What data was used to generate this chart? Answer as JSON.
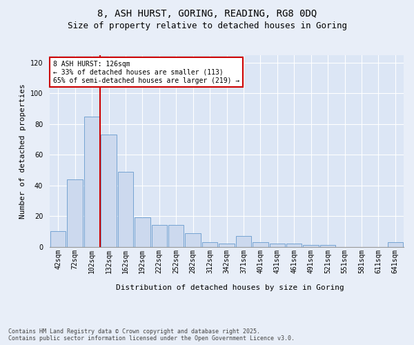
{
  "title_line1": "8, ASH HURST, GORING, READING, RG8 0DQ",
  "title_line2": "Size of property relative to detached houses in Goring",
  "xlabel": "Distribution of detached houses by size in Goring",
  "ylabel": "Number of detached properties",
  "bar_color": "#ccd9ee",
  "bar_edge_color": "#6699cc",
  "background_color": "#dce6f5",
  "fig_background_color": "#e8eef8",
  "grid_color": "#ffffff",
  "vline_color": "#cc0000",
  "annotation_text": "8 ASH HURST: 126sqm\n← 33% of detached houses are smaller (113)\n65% of semi-detached houses are larger (219) →",
  "annotation_box_color": "#cc0000",
  "categories": [
    "42sqm",
    "72sqm",
    "102sqm",
    "132sqm",
    "162sqm",
    "192sqm",
    "222sqm",
    "252sqm",
    "282sqm",
    "312sqm",
    "342sqm",
    "371sqm",
    "401sqm",
    "431sqm",
    "461sqm",
    "491sqm",
    "521sqm",
    "551sqm",
    "581sqm",
    "611sqm",
    "641sqm"
  ],
  "values": [
    10,
    44,
    85,
    73,
    49,
    19,
    14,
    14,
    9,
    3,
    2,
    7,
    3,
    2,
    2,
    1,
    1,
    0,
    0,
    0,
    3
  ],
  "ylim": [
    0,
    125
  ],
  "yticks": [
    0,
    20,
    40,
    60,
    80,
    100,
    120
  ],
  "footnote": "Contains HM Land Registry data © Crown copyright and database right 2025.\nContains public sector information licensed under the Open Government Licence v3.0.",
  "title_fontsize": 10,
  "subtitle_fontsize": 9,
  "ylabel_fontsize": 8,
  "xlabel_fontsize": 8,
  "tick_fontsize": 7,
  "annotation_fontsize": 7,
  "footnote_fontsize": 6
}
